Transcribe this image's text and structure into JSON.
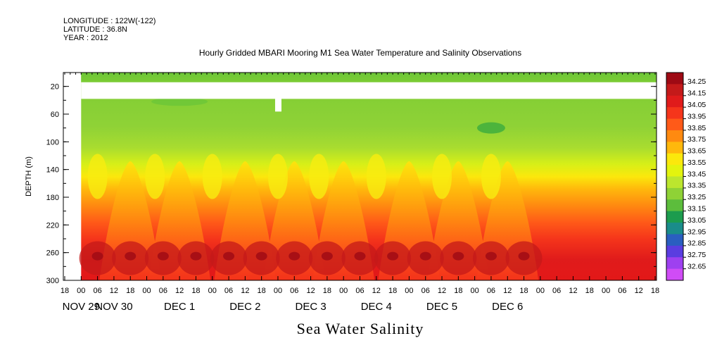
{
  "meta": {
    "longitude": "LONGITUDE : 122W(-122)",
    "latitude": "LATITUDE : 36.8N",
    "year": "YEAR : 2012"
  },
  "title": "Hourly Gridded MBARI Mooring M1 Sea Water Temperature and Salinity Observations",
  "bottom_title": "Sea Water Salinity",
  "chart_data": {
    "type": "heatmap",
    "title": "Hourly Gridded MBARI Mooring M1 Sea Water Temperature and Salinity Observations",
    "variable": "Sea Water Salinity",
    "ylabel": "DEPTH (m)",
    "ylim": [
      300,
      0
    ],
    "y_ticks": [
      20,
      60,
      100,
      140,
      180,
      220,
      260,
      300
    ],
    "x_hour_ticks": [
      "18",
      "00",
      "06",
      "12",
      "18",
      "00",
      "06",
      "12",
      "18",
      "00",
      "06",
      "12",
      "18",
      "00",
      "06",
      "12",
      "18",
      "00",
      "06",
      "12",
      "18",
      "00",
      "06",
      "12",
      "18",
      "00",
      "06",
      "12",
      "18",
      "00",
      "06",
      "12",
      "18",
      "00",
      "06",
      "12",
      "18"
    ],
    "x_day_labels": [
      {
        "label": "NOV 29",
        "tick_index": 1
      },
      {
        "label": "NOV 30",
        "tick_index": 3
      },
      {
        "label": "DEC  1",
        "tick_index": 7
      },
      {
        "label": "DEC  2",
        "tick_index": 11
      },
      {
        "label": "DEC  3",
        "tick_index": 15
      },
      {
        "label": "DEC  4",
        "tick_index": 19
      },
      {
        "label": "DEC  5",
        "tick_index": 23
      },
      {
        "label": "DEC  6",
        "tick_index": 27
      }
    ],
    "colorbar_levels": [
      "34.25",
      "34.15",
      "34.05",
      "33.95",
      "33.85",
      "33.75",
      "33.65",
      "33.55",
      "33.45",
      "33.35",
      "33.25",
      "33.15",
      "33.05",
      "32.95",
      "32.85",
      "32.75",
      "32.65"
    ],
    "colorbar_colors": [
      "#9e0a14",
      "#c41a1a",
      "#e01b1b",
      "#f5351b",
      "#ff5a18",
      "#ff8a10",
      "#ffb80c",
      "#fbe80c",
      "#e3f40e",
      "#bce62e",
      "#8fd236",
      "#5cbd3c",
      "#1c9c4e",
      "#1a8c8a",
      "#2a5ec0",
      "#5a3de0",
      "#9e40f0",
      "#d04cf6"
    ],
    "data_time_range_hours": [
      6,
      168
    ],
    "missing_depth_band_m": [
      14,
      38
    ],
    "features": {
      "surface_salinity": 33.3,
      "near_bottom_max_salinity": 34.2,
      "upwelling_domes_hours": [
        24,
        42,
        66,
        84,
        102,
        126,
        144,
        162
      ]
    }
  }
}
